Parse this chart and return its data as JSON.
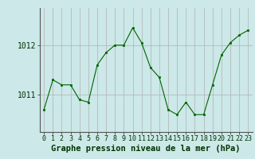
{
  "hours": [
    0,
    1,
    2,
    3,
    4,
    5,
    6,
    7,
    8,
    9,
    10,
    11,
    12,
    13,
    14,
    15,
    16,
    17,
    18,
    19,
    20,
    21,
    22,
    23
  ],
  "pressure": [
    1010.7,
    1011.3,
    1011.2,
    1011.2,
    1010.9,
    1010.85,
    1011.6,
    1011.85,
    1012.0,
    1012.0,
    1012.35,
    1012.05,
    1011.55,
    1011.35,
    1010.7,
    1010.6,
    1010.85,
    1010.6,
    1010.6,
    1011.2,
    1011.8,
    1012.05,
    1012.2,
    1012.3
  ],
  "line_color": "#006400",
  "marker": "s",
  "marker_size": 2.0,
  "bg_color": "#cce8e8",
  "grid_color_v": "#b0b0b0",
  "grid_color_h": "#b0b0b0",
  "xlabel": "Graphe pression niveau de la mer (hPa)",
  "xlabel_fontsize": 7.5,
  "xlabel_fontweight": "bold",
  "xlabel_color": "#003300",
  "ytick_labels": [
    "1011",
    "1012"
  ],
  "ytick_values": [
    1011,
    1012
  ],
  "ylim": [
    1010.25,
    1012.75
  ],
  "xlim": [
    -0.5,
    23.5
  ],
  "xtick_values": [
    0,
    1,
    2,
    3,
    4,
    5,
    6,
    7,
    8,
    9,
    10,
    11,
    12,
    13,
    14,
    15,
    16,
    17,
    18,
    19,
    20,
    21,
    22,
    23
  ],
  "xtick_labels": [
    "0",
    "1",
    "2",
    "3",
    "4",
    "5",
    "6",
    "7",
    "8",
    "9",
    "10",
    "11",
    "12",
    "13",
    "14",
    "15",
    "16",
    "17",
    "18",
    "19",
    "20",
    "21",
    "22",
    "23"
  ],
  "tick_fontsize": 6.0,
  "ytick_fontsize": 7.0
}
